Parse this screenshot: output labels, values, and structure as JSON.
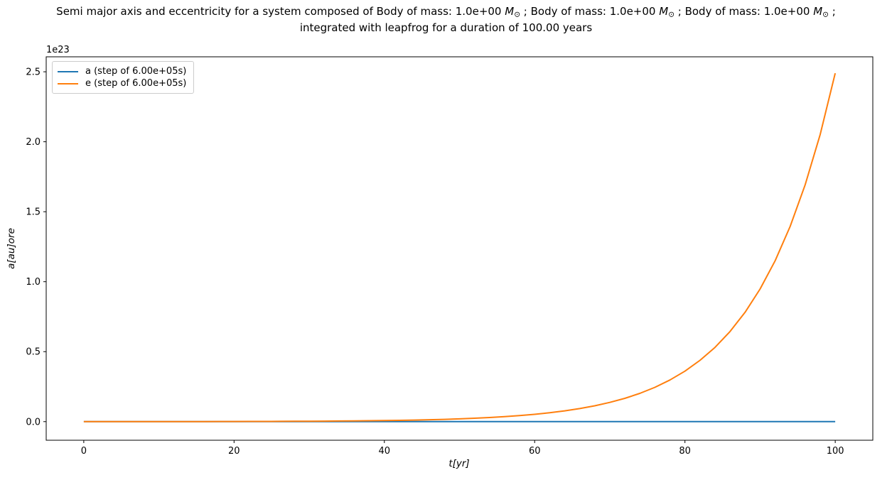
{
  "title": {
    "line1_segments": [
      {
        "t": "Semi major axis and eccentricity for a system composed of Body of mass: 1.0e+00 ",
        "s": "plain"
      },
      {
        "t": "M",
        "s": "mathvar"
      },
      {
        "t": "⊙",
        "s": "sub"
      },
      {
        "t": " ; Body of mass: 1.0e+00 ",
        "s": "plain"
      },
      {
        "t": "M",
        "s": "mathvar"
      },
      {
        "t": "⊙",
        "s": "sub"
      },
      {
        "t": " ; Body of mass: 1.0e+00 ",
        "s": "plain"
      },
      {
        "t": "M",
        "s": "mathvar"
      },
      {
        "t": "⊙",
        "s": "sub"
      },
      {
        "t": " ;",
        "s": "plain"
      }
    ],
    "line2": "integrated with leapfrog for a duration of 100.00 years"
  },
  "axes": {
    "offset_text": "1e23",
    "xlabel": "t[yr]",
    "ylabel": "a[au]ore",
    "spine_color": "#000000"
  },
  "legend": {
    "entries": [
      {
        "label": "a (step of 6.00e+05s)",
        "color": "#1f77b4"
      },
      {
        "label": "e (step of 6.00e+05s)",
        "color": "#ff7f0e"
      }
    ]
  },
  "chart_data": {
    "type": "line",
    "title": "Semi major axis and eccentricity for a system composed of Body of mass: 1.0e+00 M⊙ ; Body of mass: 1.0e+00 M⊙ ; Body of mass: 1.0e+00 M⊙ ; integrated with leapfrog for a duration of 100.00 years",
    "xlabel": "t [yr]",
    "ylabel": "a [au] or e",
    "y_scale_offset": "1e23",
    "grid": false,
    "legend_position": "upper left",
    "xlim": [
      -5,
      105
    ],
    "ylim_1e23": [
      -0.133,
      2.607
    ],
    "x_ticks": [
      0,
      20,
      40,
      60,
      80,
      100
    ],
    "x_tick_labels": [
      "0",
      "20",
      "40",
      "60",
      "80",
      "100"
    ],
    "y_ticks_1e23": [
      0.0,
      0.5,
      1.0,
      1.5,
      2.0,
      2.5
    ],
    "y_tick_labels": [
      "0.0",
      "0.5",
      "1.0",
      "1.5",
      "2.0",
      "2.5"
    ],
    "x_years": [
      0,
      2,
      4,
      6,
      8,
      10,
      12,
      14,
      16,
      18,
      20,
      22,
      24,
      26,
      28,
      30,
      32,
      34,
      36,
      38,
      40,
      42,
      44,
      46,
      48,
      50,
      52,
      54,
      56,
      58,
      60,
      62,
      64,
      66,
      68,
      70,
      72,
      74,
      76,
      78,
      80,
      82,
      84,
      86,
      88,
      90,
      92,
      94,
      96,
      98,
      100
    ],
    "series": [
      {
        "name": "a (step of 6.00e+05s)",
        "color": "#1f77b4",
        "values_1e23": [
          0,
          0,
          0,
          0,
          0,
          0,
          0,
          0,
          0,
          0,
          0,
          0,
          0,
          0,
          0,
          0,
          0,
          0,
          0,
          0,
          0,
          0,
          0,
          0,
          0,
          0,
          0,
          0,
          0,
          0,
          0,
          0,
          0,
          0,
          0,
          0,
          0,
          0,
          0,
          0,
          0,
          0,
          0,
          0,
          0,
          0,
          0,
          0,
          0,
          0,
          0
        ]
      },
      {
        "name": "e (step of 6.00e+05s)",
        "color": "#ff7f0e",
        "values_1e23": [
          0.0002,
          0.0002,
          0.0002,
          0.0003,
          0.0003,
          0.0004,
          0.0005,
          0.0006,
          0.0007,
          0.0009,
          0.0011,
          0.0013,
          0.0016,
          0.002,
          0.0024,
          0.0029,
          0.0035,
          0.0043,
          0.0052,
          0.0063,
          0.0076,
          0.0092,
          0.0111,
          0.0135,
          0.0164,
          0.0199,
          0.0241,
          0.0293,
          0.0355,
          0.0431,
          0.0523,
          0.0634,
          0.0769,
          0.0933,
          0.1132,
          0.1373,
          0.1665,
          0.202,
          0.2451,
          0.2973,
          0.3607,
          0.4376,
          0.5308,
          0.644,
          0.7812,
          0.9477,
          1.1497,
          1.3947,
          1.6919,
          2.0525,
          2.49
        ]
      }
    ]
  }
}
